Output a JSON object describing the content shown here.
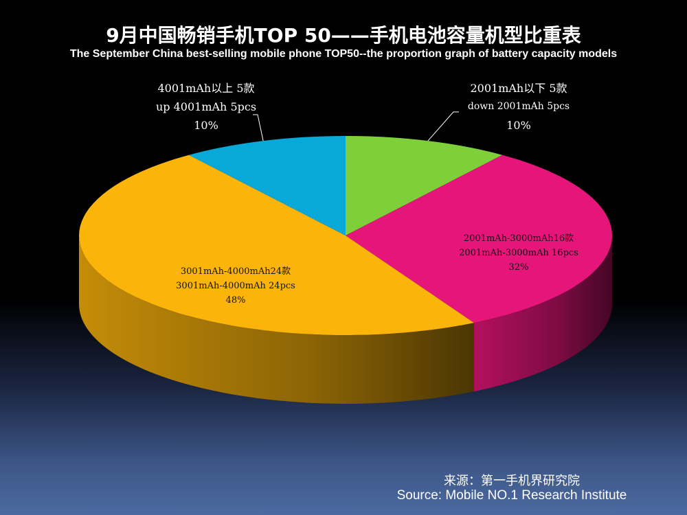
{
  "title_cn": "9月中国畅销手机TOP 50——手机电池容量机型比重表",
  "title_en": "The September China best-selling mobile phone TOP50--the proportion graph of battery capacity models",
  "chart_data": {
    "type": "pie",
    "style": "3d",
    "slices": [
      {
        "label_cn": "2001mAh以下 5款",
        "label_en": "down 2001mAh 5pcs",
        "count": 5,
        "percent": 10,
        "percent_label": "10%",
        "color": "#7fcf3a"
      },
      {
        "label_cn": "2001mAh-3000mAh16款",
        "label_en": "2001mAh-3000mAh 16pcs",
        "count": 16,
        "percent": 32,
        "percent_label": "32%",
        "color": "#e5157a"
      },
      {
        "label_cn": "3001mAh-4000mAh24款",
        "label_en": "3001mAh-4000mAh 24pcs",
        "count": 24,
        "percent": 48,
        "percent_label": "48%",
        "color": "#fbb40a"
      },
      {
        "label_cn": "4001mAh以上 5款",
        "label_en": "up 4001mAh 5pcs",
        "count": 5,
        "percent": 10,
        "percent_label": "10%",
        "color": "#08a9d9"
      }
    ]
  },
  "source_cn": "来源：第一手机界研究院",
  "source_en": "Source: Mobile NO.1 Research Institute"
}
